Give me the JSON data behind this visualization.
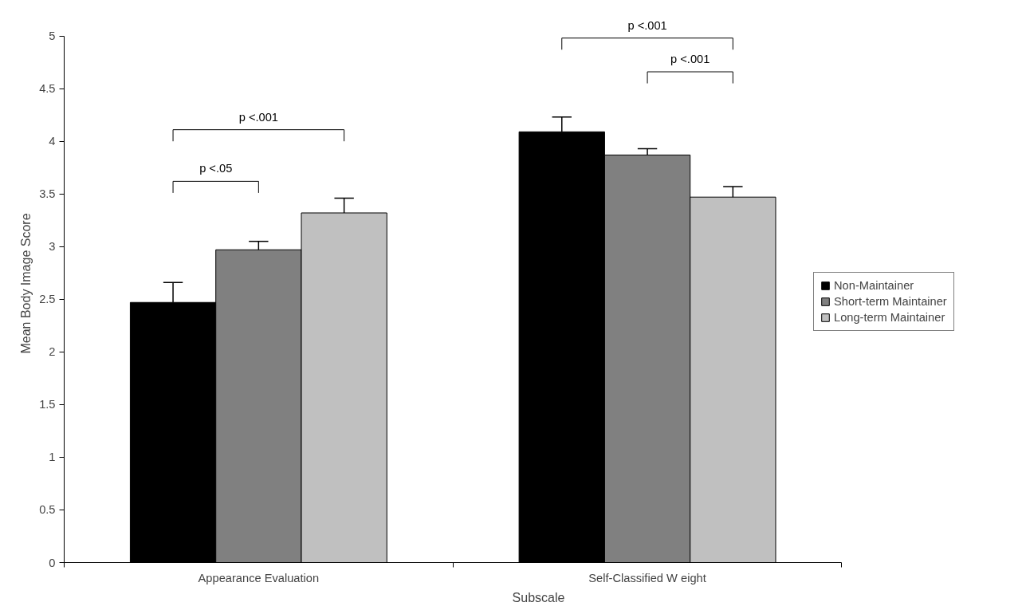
{
  "chart_data": {
    "type": "bar",
    "xlabel": "Subscale",
    "ylabel": "Mean Body Image Score",
    "categories": [
      "Appearance Evaluation",
      "Self-Classified W eight"
    ],
    "series": [
      {
        "name": "Non-Maintainer",
        "color": "#000000",
        "values": [
          2.47,
          4.09
        ],
        "errors": [
          [
            2.47,
            2.66
          ],
          [
            4.09,
            4.23
          ]
        ]
      },
      {
        "name": "Short-term Maintainer",
        "color": "#808080",
        "values": [
          2.97,
          3.87
        ],
        "errors": [
          [
            2.97,
            3.05
          ],
          [
            3.87,
            3.93
          ]
        ]
      },
      {
        "name": "Long-term Maintainer",
        "color": "#c0c0c0",
        "values": [
          3.32,
          3.47
        ],
        "errors": [
          [
            3.32,
            3.46
          ],
          [
            3.47,
            3.57
          ]
        ]
      }
    ],
    "ylim": [
      0,
      5
    ],
    "yticks": [
      0,
      0.5,
      1,
      1.5,
      2,
      2.5,
      3,
      3.5,
      4,
      4.5,
      5
    ],
    "grid": false,
    "legend": "right",
    "annotations": [
      "p <.001",
      "p <.05",
      "p <.001",
      "p <.001"
    ]
  }
}
